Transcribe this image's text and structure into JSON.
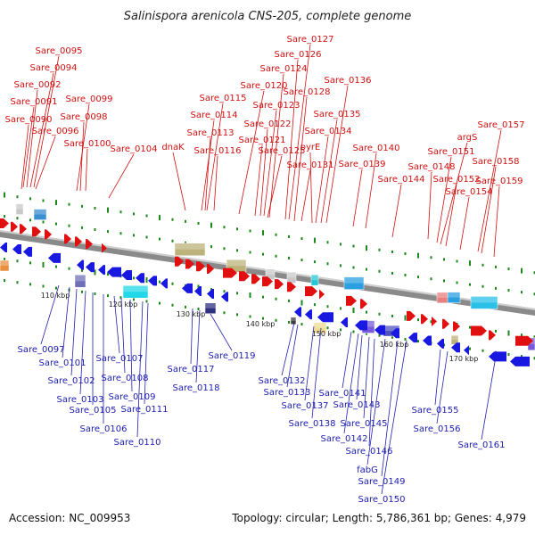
{
  "title": "Salinispora arenicola CNS-205, complete genome",
  "accession": "Accession: NC_009953",
  "summary": "Topology: circular; Length: 5,786,361 bp; Genes: 4,979",
  "colors": {
    "forward": "#e01010",
    "reverse": "#1818e0",
    "forward_label": "#d01010",
    "reverse_label": "#2020b0",
    "backbone": "#888888",
    "ticks": "#1a8a1a"
  },
  "ticks": [
    "110 kbp",
    "120 kbp",
    "130 kbp",
    "140 kbp",
    "150 kbp",
    "160 kbp",
    "170 kbp"
  ],
  "forward_labels": [
    "Sare_0095",
    "Sare_0094",
    "Sare_0092",
    "Sare_0091",
    "Sare_0090",
    "Sare_0096",
    "Sare_0099",
    "Sare_0098",
    "Sare_0100",
    "Sare_0104",
    "dnaK",
    "Sare_0113",
    "Sare_0114",
    "Sare_0115",
    "Sare_0116",
    "Sare_0120",
    "Sare_0121",
    "Sare_0122",
    "Sare_0123",
    "Sare_0124",
    "Sare_0125",
    "Sare_0126",
    "Sare_0127",
    "Sare_0128",
    "Sare_0131",
    "pyrE",
    "Sare_0134",
    "Sare_0135",
    "Sare_0136",
    "Sare_0139",
    "Sare_0140",
    "Sare_0144",
    "Sare_0148",
    "Sare_0151",
    "argS",
    "Sare_0152",
    "Sare_0154",
    "Sare_0157",
    "Sare_0158",
    "Sare_0159"
  ],
  "reverse_labels": [
    "Sare_0097",
    "Sare_0101",
    "Sare_0102",
    "Sare_0103",
    "Sare_0105",
    "Sare_0106",
    "Sare_0107",
    "Sare_0108",
    "Sare_0109",
    "Sare_0110",
    "Sare_0111",
    "Sare_0117",
    "Sare_0118",
    "Sare_0119",
    "Sare_0132",
    "Sare_0133",
    "Sare_0137",
    "Sare_0138",
    "Sare_0141",
    "Sare_0142",
    "Sare_0143",
    "Sare_0145",
    "Sare_0146",
    "fabG",
    "Sare_0149",
    "Sare_0150",
    "Sare_0155",
    "Sare_0156",
    "Sare_0161"
  ]
}
